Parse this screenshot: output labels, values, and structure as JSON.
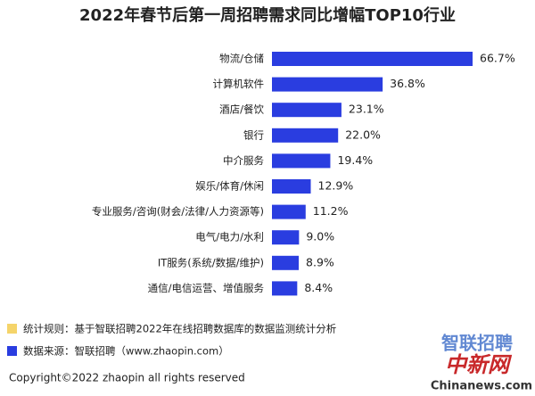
{
  "chart_data": {
    "type": "bar",
    "orientation": "horizontal",
    "title": "2022年春节后第一周招聘需求同比增幅TOP10行业",
    "categories": [
      "物流/仓储",
      "计算机软件",
      "酒店/餐饮",
      "银行",
      "中介服务",
      "娱乐/体育/休闲",
      "专业服务/咨询(财会/法律/人力资源等)",
      "电气/电力/水利",
      "IT服务(系统/数据/维护)",
      "通信/电信运营、增值服务"
    ],
    "values": [
      66.7,
      36.8,
      23.1,
      22.0,
      19.4,
      12.9,
      11.2,
      9.0,
      8.9,
      8.4
    ],
    "value_labels": [
      "66.7%",
      "36.8%",
      "23.1%",
      "22.0%",
      "19.4%",
      "12.9%",
      "11.2%",
      "9.0%",
      "8.9%",
      "8.4%"
    ],
    "color": "#2a3de0",
    "notes": [
      {
        "text": "统计规则：基于智联招聘2022年在线招聘数据库的数据监测统计分析",
        "color": "#f5d46a"
      },
      {
        "text": "数据来源：智联招聘（www.zhaopin.com）",
        "color": "#2a3de0"
      }
    ],
    "copyright": "Copyright©2022 zhaopin all rights reserved",
    "watermarks": [
      "智联招聘",
      "中新网",
      "Chinanews.com"
    ]
  }
}
